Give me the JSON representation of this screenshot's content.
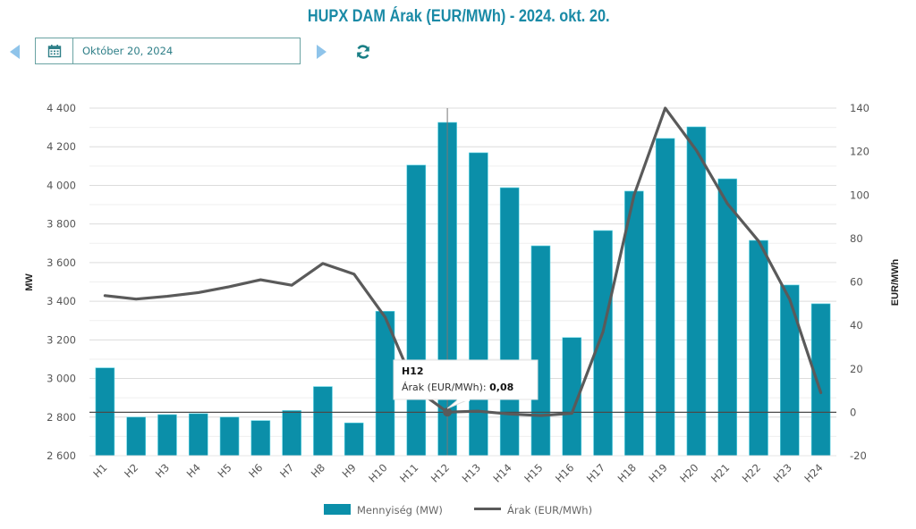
{
  "header": {
    "title": "HUPX DAM Árak (EUR/MWh) - 2024. okt. 20."
  },
  "controls": {
    "prev_icon": "caret-left-icon",
    "next_icon": "caret-right-icon",
    "calendar_icon": "calendar-icon",
    "refresh_icon": "refresh-icon",
    "date_value": "Október 20, 2024"
  },
  "colors": {
    "bar": "#0b8fa9",
    "bar_outline": "#5fd6e6",
    "line": "#5a5a5a",
    "title": "#1a8aa6",
    "grid": "#e3e3e3",
    "zero_line": "#4a4a4a"
  },
  "chart_data": {
    "type": "bar+line",
    "title": "HUPX DAM Árak (EUR/MWh) - 2024. okt. 20.",
    "categories": [
      "H1",
      "H2",
      "H3",
      "H4",
      "H5",
      "H6",
      "H7",
      "H8",
      "H9",
      "H10",
      "H11",
      "H12",
      "H13",
      "H14",
      "H15",
      "H16",
      "H17",
      "H18",
      "H19",
      "H20",
      "H21",
      "H22",
      "H23",
      "H24"
    ],
    "series": [
      {
        "name": "Mennyiség (MW)",
        "type": "bar",
        "axis": "left",
        "values": [
          3055,
          2800,
          2813,
          2818,
          2800,
          2782,
          2834,
          2958,
          2770,
          3348,
          4105,
          4326,
          4169,
          3988,
          3687,
          3212,
          3766,
          3970,
          4243,
          4303,
          4034,
          3715,
          3484,
          3387
        ]
      },
      {
        "name": "Árak (EUR/MWh)",
        "type": "line",
        "axis": "right",
        "values": [
          53.7,
          52.1,
          53.4,
          55.1,
          57.8,
          61.0,
          58.5,
          68.5,
          63.6,
          43.8,
          10.5,
          0.08,
          0.5,
          -0.8,
          -1.5,
          -0.5,
          37.0,
          100.0,
          140.0,
          120.6,
          96.0,
          78.8,
          52.0,
          9.0
        ]
      }
    ],
    "left_axis": {
      "label": "MW",
      "range": [
        2600,
        4400
      ],
      "ticks": [
        2600,
        2800,
        3000,
        3200,
        3400,
        3600,
        3800,
        4000,
        4200,
        4400
      ],
      "tick_labels": [
        "2 600",
        "2 800",
        "3 000",
        "3 200",
        "3 400",
        "3 600",
        "3 800",
        "4 000",
        "4 200",
        "4 400"
      ]
    },
    "right_axis": {
      "label": "EUR/MWh",
      "range": [
        -20,
        140
      ],
      "ticks": [
        -20,
        0,
        20,
        40,
        60,
        80,
        100,
        120,
        140
      ],
      "tick_labels": [
        "-20",
        "0",
        "20",
        "40",
        "60",
        "80",
        "100",
        "120",
        "140"
      ]
    },
    "grid": true,
    "legend": {
      "placement": "bottom-center",
      "items": [
        "Mennyiség (MW)",
        "Árak (EUR/MWh)"
      ]
    },
    "tooltip": {
      "category_index": 11,
      "title": "H12",
      "label": "Árak (EUR/MWh):",
      "value": "0,08"
    }
  }
}
